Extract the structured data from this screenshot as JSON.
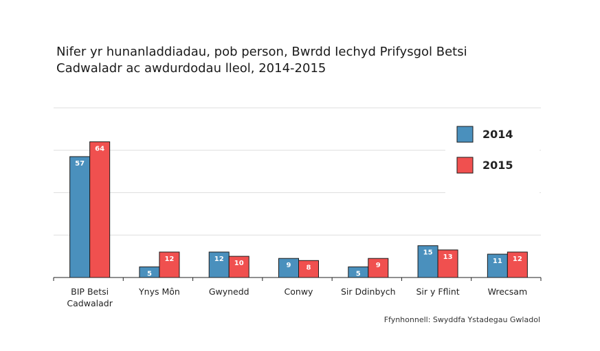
{
  "title_line1": "Nifer yr hunanladdiadau, pob person, Bwrdd Iechyd Prifysgol Betsi",
  "title_line2": "Cadwaladr ac awdurdodau lleol, 2014-2015",
  "source": "Ffynhonnell: Swyddfa Ystadegau Gwladol",
  "colors": {
    "2014": "#4a90bd",
    "2015": "#f0504f"
  },
  "chart_data": {
    "type": "bar",
    "title": "Nifer yr hunanladdiadau, pob person, Bwrdd Iechyd Prifysgol Betsi Cadwaladr ac awdurdodau lleol, 2014-2015",
    "categories": [
      [
        "BIP Betsi",
        "Cadwaladr"
      ],
      [
        "Ynys Môn"
      ],
      [
        "Gwynedd"
      ],
      [
        "Conwy"
      ],
      [
        "Sir Ddinbych"
      ],
      [
        "Sir y Fflint"
      ],
      [
        "Wrecsam"
      ]
    ],
    "series": [
      {
        "name": "2014",
        "values": [
          57,
          5,
          12,
          9,
          5,
          15,
          11
        ]
      },
      {
        "name": "2015",
        "values": [
          64,
          12,
          10,
          8,
          9,
          13,
          12
        ]
      }
    ],
    "ylim": [
      0,
      80
    ],
    "grid": true,
    "legend": "top-right"
  }
}
